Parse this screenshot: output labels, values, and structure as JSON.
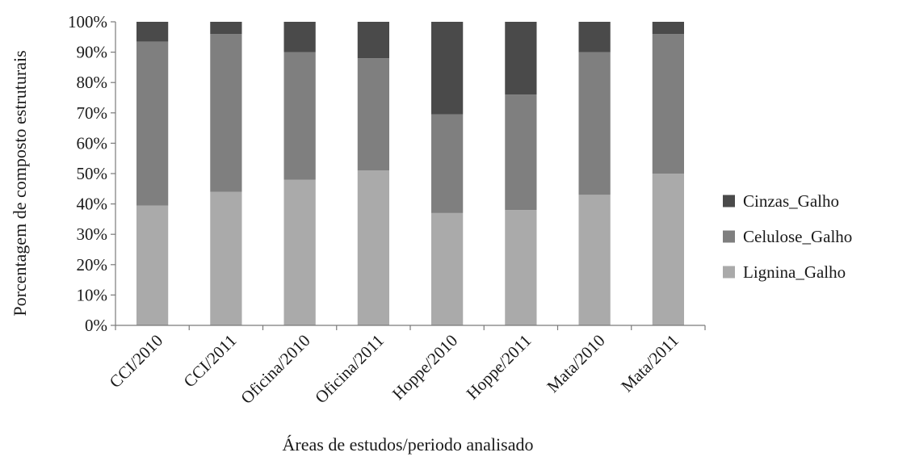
{
  "chart_data": {
    "type": "bar",
    "stacked": true,
    "percent_stacked": true,
    "categories": [
      "CCI/2010",
      "CCI/2011",
      "Oficina/2010",
      "Oficina/2011",
      "Hoppe/2010",
      "Hoppe/2011",
      "Mata/2010",
      "Mata/2011"
    ],
    "series": [
      {
        "name": "Lignina_Galho",
        "color": "#aaaaaa",
        "values": [
          39.5,
          44,
          48,
          51,
          37,
          38,
          43,
          50
        ]
      },
      {
        "name": "Celulose_Galho",
        "color": "#7f7f7f",
        "values": [
          54,
          52,
          42,
          37,
          32.5,
          38,
          47,
          46
        ]
      },
      {
        "name": "Cinzas_Galho",
        "color": "#4a4a4a",
        "values": [
          6.5,
          4,
          10,
          12,
          30.5,
          24,
          10,
          4
        ]
      }
    ],
    "legend_order": [
      "Cinzas_Galho",
      "Celulose_Galho",
      "Lignina_Galho"
    ],
    "title": "",
    "xlabel": "Áreas de estudos/periodo analisado",
    "ylabel": "Porcentagem de composto estruturais",
    "ylim": [
      0,
      100
    ],
    "yticks": [
      "0%",
      "10%",
      "20%",
      "30%",
      "40%",
      "50%",
      "60%",
      "70%",
      "80%",
      "90%",
      "100%"
    ],
    "grid": false,
    "legend_position": "right"
  }
}
